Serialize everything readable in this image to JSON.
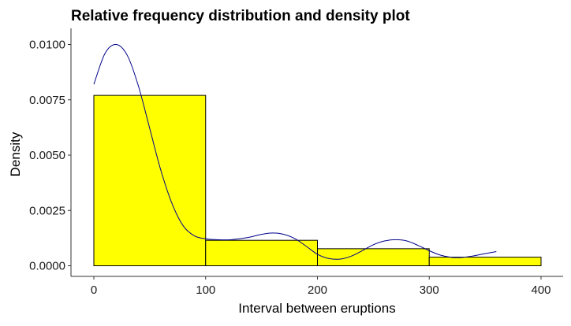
{
  "chart_data": {
    "type": "bar",
    "title": "Relative frequency distribution and density plot",
    "xlabel": "Interval between eruptions",
    "ylabel": "Density",
    "xlim": [
      0,
      400
    ],
    "ylim": [
      0,
      0.0105
    ],
    "grid": false,
    "x_ticks": [
      {
        "value": 0,
        "label": "0"
      },
      {
        "value": 100,
        "label": "100"
      },
      {
        "value": 200,
        "label": "200"
      },
      {
        "value": 300,
        "label": "300"
      },
      {
        "value": 400,
        "label": "400"
      }
    ],
    "y_ticks": [
      {
        "value": 0,
        "label": "0.0000"
      },
      {
        "value": 0.0025,
        "label": "0.0025"
      },
      {
        "value": 0.005,
        "label": "0.0050"
      },
      {
        "value": 0.0075,
        "label": "0.0075"
      },
      {
        "value": 0.01,
        "label": "0.0100"
      }
    ],
    "bins": [
      {
        "x0": 0,
        "x1": 100,
        "density": 0.0077
      },
      {
        "x0": 100,
        "x1": 200,
        "density": 0.00115
      },
      {
        "x0": 200,
        "x1": 300,
        "density": 0.00077
      },
      {
        "x0": 300,
        "x1": 400,
        "density": 0.00039
      }
    ],
    "density_curve": {
      "x": [
        0,
        10,
        20,
        30,
        40,
        50,
        60,
        70,
        80,
        90,
        100,
        110,
        120,
        130,
        140,
        150,
        160,
        170,
        180,
        190,
        200,
        210,
        220,
        230,
        240,
        250,
        260,
        270,
        280,
        290,
        300,
        310,
        320,
        330,
        340,
        350,
        360
      ],
      "y": [
        0.0082,
        0.0096,
        0.01,
        0.0095,
        0.0081,
        0.0062,
        0.0043,
        0.0028,
        0.0018,
        0.00135,
        0.00122,
        0.00118,
        0.00117,
        0.00122,
        0.0013,
        0.00142,
        0.00148,
        0.00142,
        0.00122,
        0.00088,
        0.00052,
        0.00033,
        0.0003,
        0.00043,
        0.00068,
        0.00095,
        0.00112,
        0.00118,
        0.00112,
        0.00092,
        0.00068,
        0.00048,
        0.00038,
        0.00038,
        0.00045,
        0.00055,
        0.00064
      ]
    },
    "colors": {
      "bar_fill": "#ffff00",
      "bar_stroke": "#000000",
      "curve": "#00008b",
      "axis": "#333333",
      "background": "#ffffff"
    }
  }
}
